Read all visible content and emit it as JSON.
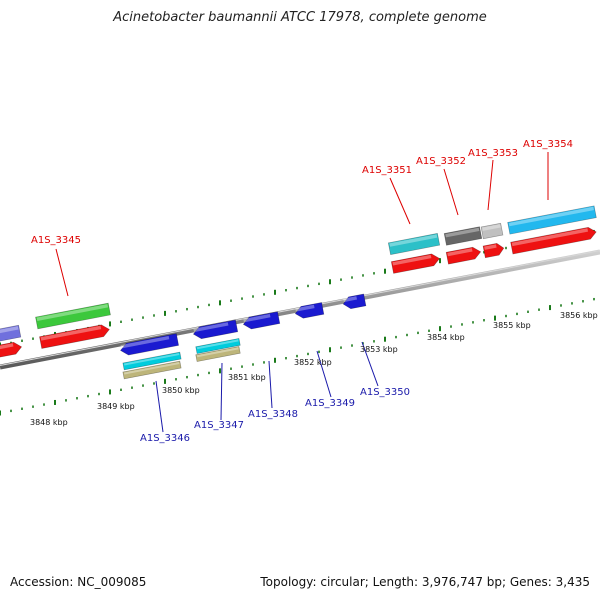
{
  "title": "Acinetobacter baumannii ATCC 17978, complete genome",
  "footer": {
    "accession": "Accession: NC_009085",
    "summary": "Topology: circular; Length: 3,976,747 bp; Genes: 3,435"
  },
  "scale_labels": [
    "3848 kbp",
    "3849 kbp",
    "3850 kbp",
    "3851 kbp",
    "3852 kbp",
    "3853 kbp",
    "3854 kbp",
    "3855 kbp",
    "3856 kbp"
  ],
  "forward_genes": [
    "A1S_3345",
    "A1S_3351",
    "A1S_3352",
    "A1S_3353",
    "A1S_3354"
  ],
  "reverse_genes": [
    "A1S_3346",
    "A1S_3347",
    "A1S_3348",
    "A1S_3349",
    "A1S_3350"
  ],
  "colors": {
    "forward_label": "#dd0000",
    "reverse_label": "#1a1aaa",
    "backbone": "#808080",
    "tick": "#1a7a1a",
    "cds": "#ee1111",
    "gene_blue": "#1a1ad0",
    "cyan": "#00ccdd",
    "tan": "#bdb57a",
    "green": "#3cc83c",
    "teal": "#2cc0c8",
    "dark_gray": "#666666",
    "light_gray": "#c0c0c0",
    "sky_blue": "#22b8ee",
    "purple": "#7070dd"
  }
}
